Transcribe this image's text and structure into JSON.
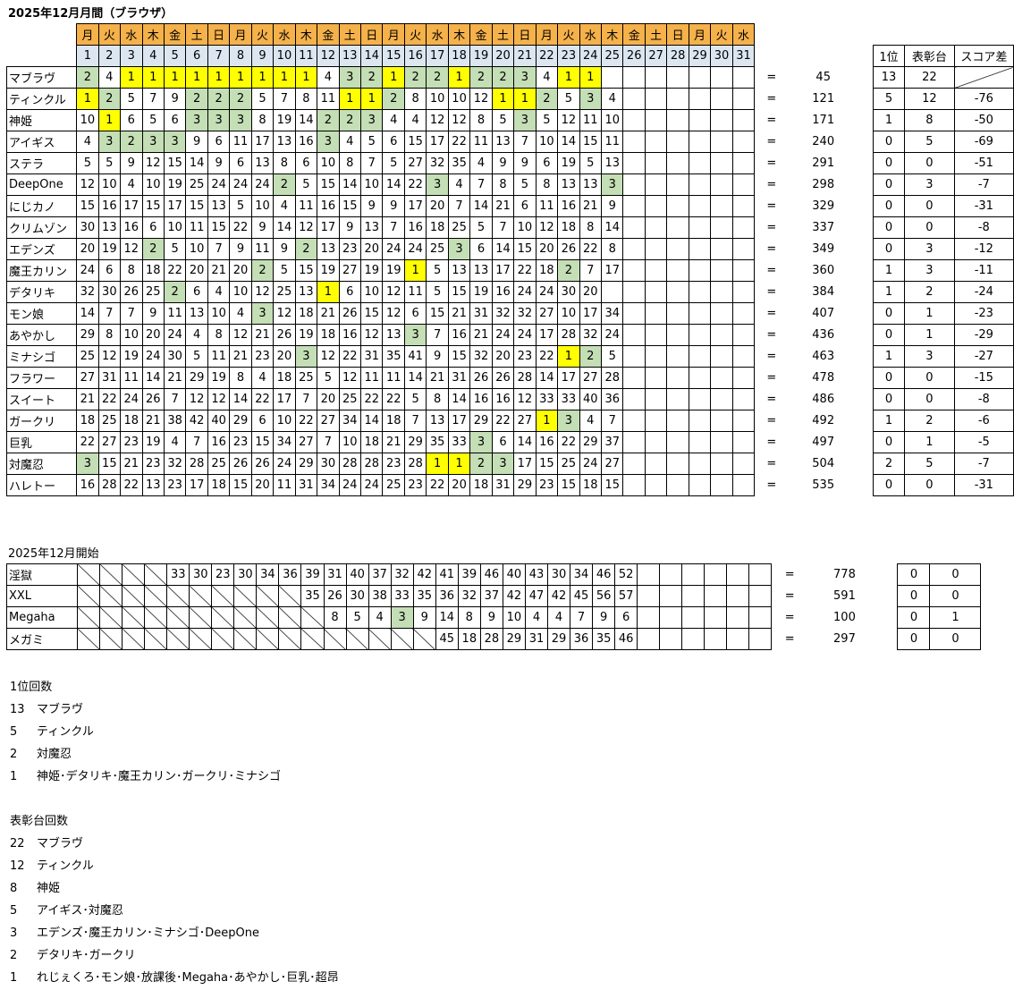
{
  "title": "2025年12月月間（ブラウザ）",
  "weekdays": [
    "月",
    "火",
    "水",
    "木",
    "金",
    "土",
    "日",
    "月",
    "火",
    "水",
    "木",
    "金",
    "土",
    "日",
    "月",
    "火",
    "水",
    "木",
    "金",
    "土",
    "日",
    "月",
    "火",
    "水",
    "木",
    "金",
    "土",
    "日",
    "月",
    "火",
    "水"
  ],
  "dates": [
    "1",
    "2",
    "3",
    "4",
    "5",
    "6",
    "7",
    "8",
    "9",
    "10",
    "11",
    "12",
    "13",
    "14",
    "15",
    "16",
    "17",
    "18",
    "19",
    "20",
    "21",
    "22",
    "23",
    "24",
    "25",
    "26",
    "27",
    "28",
    "29",
    "30",
    "31"
  ],
  "eq": "=",
  "stat_headers": [
    "1位",
    "表彰台",
    "スコア差"
  ],
  "rows": [
    {
      "name": "マブラヴ",
      "cells": [
        "2",
        "4",
        "1",
        "1",
        "1",
        "1",
        "1",
        "1",
        "1",
        "1",
        "1",
        "4",
        "3",
        "2",
        "1",
        "2",
        "2",
        "1",
        "2",
        "2",
        "3",
        "4",
        "1",
        "1",
        "",
        "",
        "",
        "",
        "",
        "",
        ""
      ],
      "total": "45",
      "first": "13",
      "podium": "22",
      "diff": ""
    },
    {
      "name": "ティンクル",
      "cells": [
        "1",
        "2",
        "5",
        "7",
        "9",
        "2",
        "2",
        "2",
        "5",
        "7",
        "8",
        "11",
        "1",
        "1",
        "2",
        "8",
        "10",
        "10",
        "12",
        "1",
        "1",
        "2",
        "5",
        "3",
        "4",
        "",
        "",
        "",
        "",
        "",
        ""
      ],
      "total": "121",
      "first": "5",
      "podium": "12",
      "diff": "-76"
    },
    {
      "name": "神姫",
      "cells": [
        "10",
        "1",
        "6",
        "5",
        "6",
        "3",
        "3",
        "3",
        "8",
        "19",
        "14",
        "2",
        "2",
        "3",
        "4",
        "4",
        "12",
        "12",
        "8",
        "5",
        "3",
        "5",
        "12",
        "11",
        "10",
        "",
        "",
        "",
        "",
        "",
        ""
      ],
      "total": "171",
      "first": "1",
      "podium": "8",
      "diff": "-50"
    },
    {
      "name": "アイギス",
      "cells": [
        "4",
        "3",
        "2",
        "3",
        "3",
        "9",
        "6",
        "11",
        "17",
        "13",
        "16",
        "3",
        "4",
        "5",
        "6",
        "15",
        "17",
        "22",
        "11",
        "13",
        "7",
        "10",
        "14",
        "15",
        "11",
        "",
        "",
        "",
        "",
        "",
        ""
      ],
      "total": "240",
      "first": "0",
      "podium": "5",
      "diff": "-69"
    },
    {
      "name": "ステラ",
      "cells": [
        "5",
        "5",
        "9",
        "12",
        "15",
        "14",
        "9",
        "6",
        "13",
        "8",
        "6",
        "10",
        "8",
        "7",
        "5",
        "27",
        "32",
        "35",
        "4",
        "9",
        "9",
        "6",
        "19",
        "5",
        "13",
        "",
        "",
        "",
        "",
        "",
        ""
      ],
      "total": "291",
      "first": "0",
      "podium": "0",
      "diff": "-51"
    },
    {
      "name": "DeepOne",
      "cells": [
        "12",
        "10",
        "4",
        "10",
        "19",
        "25",
        "24",
        "24",
        "24",
        "2",
        "5",
        "15",
        "14",
        "10",
        "14",
        "22",
        "3",
        "4",
        "7",
        "8",
        "5",
        "8",
        "13",
        "13",
        "3",
        "",
        "",
        "",
        "",
        "",
        ""
      ],
      "total": "298",
      "first": "0",
      "podium": "3",
      "diff": "-7"
    },
    {
      "name": "にじカノ",
      "cells": [
        "15",
        "16",
        "17",
        "15",
        "17",
        "15",
        "13",
        "5",
        "10",
        "4",
        "11",
        "16",
        "15",
        "9",
        "9",
        "17",
        "20",
        "7",
        "14",
        "21",
        "6",
        "11",
        "16",
        "21",
        "9",
        "",
        "",
        "",
        "",
        "",
        ""
      ],
      "total": "329",
      "first": "0",
      "podium": "0",
      "diff": "-31"
    },
    {
      "name": "クリムゾン",
      "cells": [
        "30",
        "13",
        "16",
        "6",
        "10",
        "11",
        "15",
        "22",
        "9",
        "14",
        "12",
        "17",
        "9",
        "13",
        "7",
        "16",
        "18",
        "25",
        "5",
        "7",
        "10",
        "12",
        "18",
        "8",
        "14",
        "",
        "",
        "",
        "",
        "",
        ""
      ],
      "total": "337",
      "first": "0",
      "podium": "0",
      "diff": "-8"
    },
    {
      "name": "エデンズ",
      "cells": [
        "20",
        "19",
        "12",
        "2",
        "5",
        "10",
        "7",
        "9",
        "11",
        "9",
        "2",
        "13",
        "23",
        "20",
        "24",
        "24",
        "25",
        "3",
        "6",
        "14",
        "15",
        "20",
        "26",
        "22",
        "8",
        "",
        "",
        "",
        "",
        "",
        ""
      ],
      "total": "349",
      "first": "0",
      "podium": "3",
      "diff": "-12"
    },
    {
      "name": "魔王カリン",
      "cells": [
        "24",
        "6",
        "8",
        "18",
        "22",
        "20",
        "21",
        "20",
        "2",
        "5",
        "15",
        "19",
        "27",
        "19",
        "19",
        "1",
        "5",
        "13",
        "13",
        "17",
        "22",
        "18",
        "2",
        "7",
        "17",
        "",
        "",
        "",
        "",
        "",
        ""
      ],
      "total": "360",
      "first": "1",
      "podium": "3",
      "diff": "-11"
    },
    {
      "name": "デタリキ",
      "cells": [
        "32",
        "30",
        "26",
        "25",
        "2",
        "6",
        "4",
        "10",
        "12",
        "25",
        "13",
        "1",
        "6",
        "10",
        "12",
        "11",
        "5",
        "15",
        "19",
        "16",
        "24",
        "24",
        "30",
        "20",
        "",
        "",
        "",
        "",
        "",
        "",
        ""
      ],
      "total": "384",
      "first": "1",
      "podium": "2",
      "diff": "-24"
    },
    {
      "name": "モン娘",
      "cells": [
        "14",
        "7",
        "7",
        "9",
        "11",
        "13",
        "10",
        "4",
        "3",
        "12",
        "18",
        "21",
        "26",
        "15",
        "12",
        "6",
        "15",
        "21",
        "31",
        "32",
        "32",
        "27",
        "10",
        "17",
        "34",
        "",
        "",
        "",
        "",
        "",
        ""
      ],
      "total": "407",
      "first": "0",
      "podium": "1",
      "diff": "-23"
    },
    {
      "name": "あやかし",
      "cells": [
        "29",
        "8",
        "10",
        "20",
        "24",
        "4",
        "8",
        "12",
        "21",
        "26",
        "19",
        "18",
        "16",
        "12",
        "13",
        "3",
        "7",
        "16",
        "21",
        "24",
        "24",
        "17",
        "28",
        "32",
        "24",
        "",
        "",
        "",
        "",
        "",
        ""
      ],
      "total": "436",
      "first": "0",
      "podium": "1",
      "diff": "-29"
    },
    {
      "name": "ミナシゴ",
      "cells": [
        "25",
        "12",
        "19",
        "24",
        "30",
        "5",
        "11",
        "21",
        "23",
        "20",
        "3",
        "12",
        "22",
        "31",
        "35",
        "41",
        "9",
        "15",
        "32",
        "20",
        "23",
        "22",
        "1",
        "2",
        "5",
        "",
        "",
        "",
        "",
        "",
        ""
      ],
      "total": "463",
      "first": "1",
      "podium": "3",
      "diff": "-27"
    },
    {
      "name": "フラワー",
      "cells": [
        "27",
        "31",
        "11",
        "14",
        "21",
        "29",
        "19",
        "8",
        "4",
        "18",
        "25",
        "5",
        "12",
        "11",
        "11",
        "14",
        "21",
        "31",
        "26",
        "26",
        "28",
        "14",
        "17",
        "27",
        "28",
        "",
        "",
        "",
        "",
        "",
        ""
      ],
      "total": "478",
      "first": "0",
      "podium": "0",
      "diff": "-15"
    },
    {
      "name": "スイート",
      "cells": [
        "21",
        "22",
        "24",
        "26",
        "7",
        "12",
        "12",
        "14",
        "22",
        "17",
        "7",
        "20",
        "25",
        "22",
        "22",
        "5",
        "8",
        "14",
        "16",
        "16",
        "12",
        "33",
        "33",
        "40",
        "36",
        "",
        "",
        "",
        "",
        "",
        ""
      ],
      "total": "486",
      "first": "0",
      "podium": "0",
      "diff": "-8"
    },
    {
      "name": "ガークリ",
      "cells": [
        "18",
        "25",
        "18",
        "21",
        "38",
        "42",
        "40",
        "29",
        "6",
        "10",
        "22",
        "27",
        "34",
        "14",
        "18",
        "7",
        "13",
        "17",
        "29",
        "22",
        "27",
        "1",
        "3",
        "4",
        "7",
        "",
        "",
        "",
        "",
        "",
        ""
      ],
      "total": "492",
      "first": "1",
      "podium": "2",
      "diff": "-6"
    },
    {
      "name": "巨乳",
      "cells": [
        "22",
        "27",
        "23",
        "19",
        "4",
        "7",
        "16",
        "23",
        "15",
        "34",
        "27",
        "7",
        "10",
        "18",
        "21",
        "29",
        "35",
        "33",
        "3",
        "6",
        "14",
        "16",
        "22",
        "29",
        "37",
        "",
        "",
        "",
        "",
        "",
        ""
      ],
      "total": "497",
      "first": "0",
      "podium": "1",
      "diff": "-5"
    },
    {
      "name": "対魔忍",
      "cells": [
        "3",
        "15",
        "21",
        "23",
        "32",
        "28",
        "25",
        "26",
        "26",
        "24",
        "29",
        "30",
        "28",
        "28",
        "23",
        "28",
        "1",
        "1",
        "2",
        "3",
        "17",
        "15",
        "25",
        "24",
        "27",
        "",
        "",
        "",
        "",
        "",
        ""
      ],
      "total": "504",
      "first": "2",
      "podium": "5",
      "diff": "-7"
    },
    {
      "name": "ハレトー",
      "cells": [
        "16",
        "28",
        "22",
        "13",
        "23",
        "17",
        "18",
        "15",
        "20",
        "11",
        "31",
        "34",
        "24",
        "24",
        "25",
        "23",
        "22",
        "20",
        "18",
        "31",
        "29",
        "23",
        "15",
        "18",
        "15",
        "",
        "",
        "",
        "",
        "",
        ""
      ],
      "total": "535",
      "first": "0",
      "podium": "0",
      "diff": "-31"
    }
  ],
  "section2_label": "2025年12月開始",
  "rows2": [
    {
      "name": "淫獄",
      "cells": [
        "",
        "",
        "",
        "",
        "33",
        "30",
        "23",
        "30",
        "34",
        "36",
        "39",
        "31",
        "40",
        "37",
        "32",
        "42",
        "41",
        "39",
        "46",
        "40",
        "43",
        "30",
        "34",
        "46",
        "52"
      ],
      "total": "778",
      "first": "0",
      "podium": "0"
    },
    {
      "name": "XXL",
      "cells": [
        "",
        "",
        "",
        "",
        "",
        "",
        "",
        "",
        "",
        "",
        "35",
        "26",
        "30",
        "38",
        "33",
        "35",
        "36",
        "32",
        "37",
        "42",
        "47",
        "42",
        "45",
        "56",
        "57"
      ],
      "total": "591",
      "first": "0",
      "podium": "0"
    },
    {
      "name": "Megaha",
      "cells": [
        "",
        "",
        "",
        "",
        "",
        "",
        "",
        "",
        "",
        "",
        "",
        "8",
        "5",
        "4",
        "3",
        "9",
        "14",
        "8",
        "9",
        "10",
        "4",
        "4",
        "7",
        "9",
        "6"
      ],
      "total": "100",
      "first": "0",
      "podium": "1"
    },
    {
      "name": "メガミ",
      "cells": [
        "",
        "",
        "",
        "",
        "",
        "",
        "",
        "",
        "",
        "",
        "",
        "",
        "",
        "",
        "",
        "",
        "45",
        "18",
        "28",
        "29",
        "31",
        "29",
        "36",
        "35",
        "46"
      ],
      "total": "297",
      "first": "0",
      "podium": "0"
    }
  ],
  "first_title": "1位回数",
  "first_list": [
    {
      "count": "13",
      "names": "マブラヴ"
    },
    {
      "count": "5",
      "names": "ティンクル"
    },
    {
      "count": "2",
      "names": "対魔忍"
    },
    {
      "count": "1",
      "names": "神姫･デタリキ･魔王カリン･ガークリ･ミナシゴ"
    }
  ],
  "podium_title": "表彰台回数",
  "podium_list": [
    {
      "count": "22",
      "names": "マブラヴ"
    },
    {
      "count": "12",
      "names": "ティンクル"
    },
    {
      "count": "8",
      "names": "神姫"
    },
    {
      "count": "5",
      "names": "アイギス･対魔忍"
    },
    {
      "count": "3",
      "names": "エデンズ･魔王カリン･ミナシゴ･DeepOne"
    },
    {
      "count": "2",
      "names": "デタリキ･ガークリ"
    },
    {
      "count": "1",
      "names": "れじぇくろ･モン娘･放課後･Megaha･あやかし･巨乳･超昂"
    }
  ],
  "colors": {
    "weekday_header": "#f5b14a",
    "date_header": "#dce6f1",
    "first_place": "#ffff00",
    "podium": "#c4deb5"
  }
}
